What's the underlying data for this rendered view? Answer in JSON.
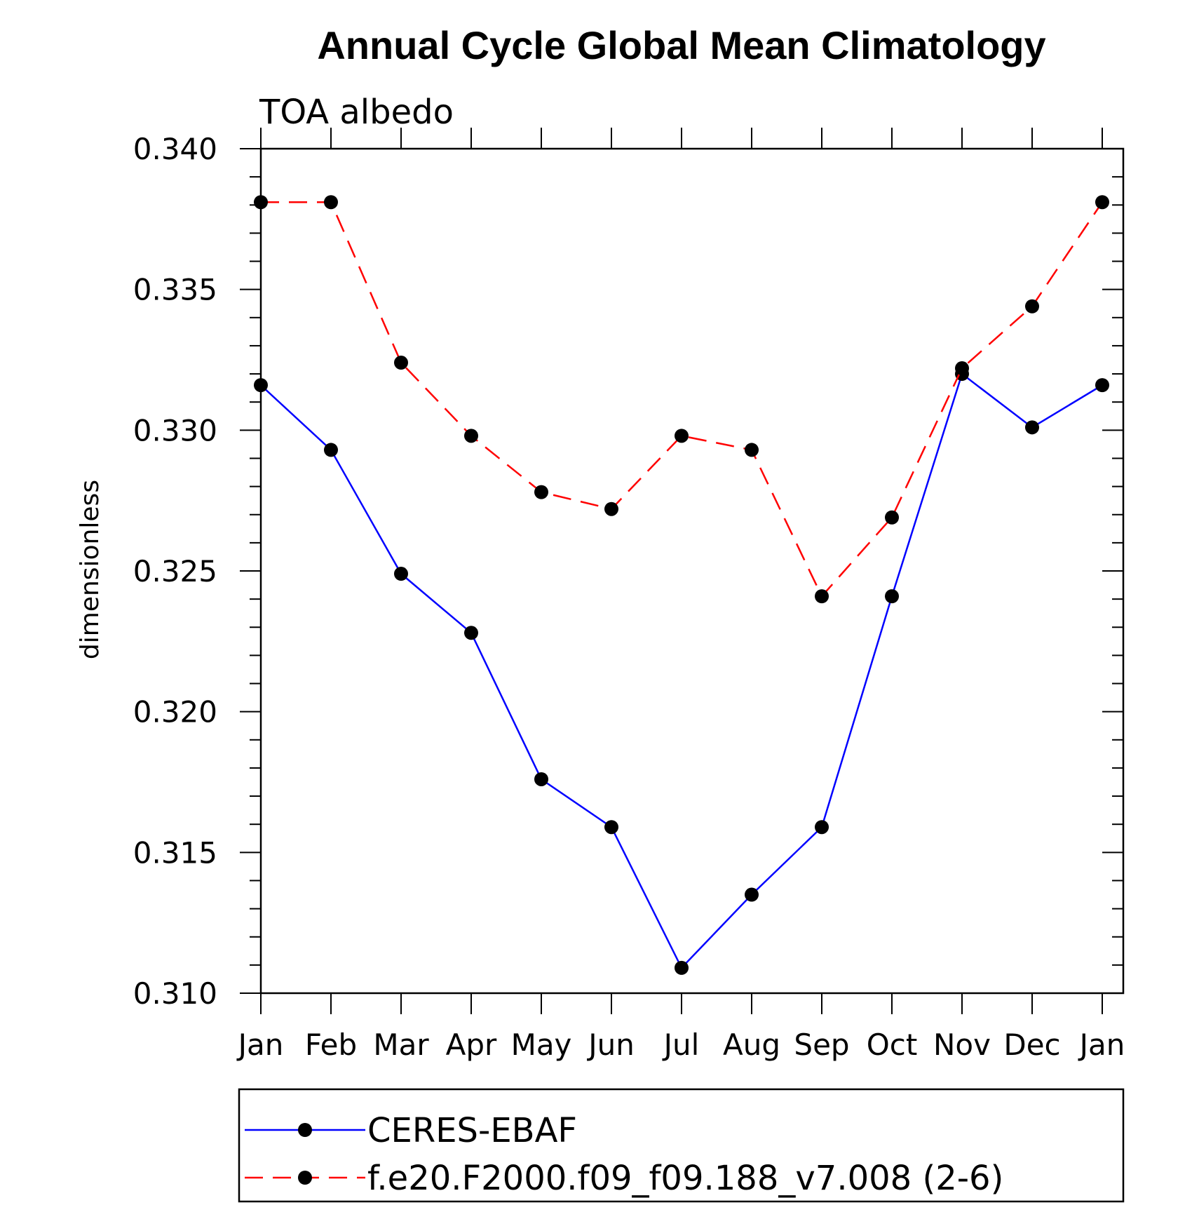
{
  "chart_data": {
    "type": "line",
    "title": "Annual Cycle Global Mean Climatology",
    "subtitle": "TOA albedo",
    "ylabel": "dimensionless",
    "xlabel": "",
    "categories": [
      "Jan",
      "Feb",
      "Mar",
      "Apr",
      "May",
      "Jun",
      "Jul",
      "Aug",
      "Sep",
      "Oct",
      "Nov",
      "Dec",
      "Jan"
    ],
    "ylim": [
      0.31,
      0.34
    ],
    "yticks": [
      0.31,
      0.315,
      0.32,
      0.325,
      0.33,
      0.335,
      0.34
    ],
    "ytick_labels": [
      "0.310",
      "0.315",
      "0.320",
      "0.325",
      "0.330",
      "0.335",
      "0.340"
    ],
    "y_minor_step": 0.001,
    "grid": false,
    "legend_position": "bottom",
    "series": [
      {
        "name": "CERES-EBAF",
        "color": "#0000ff",
        "dash": "solid",
        "marker": "circle",
        "values": [
          0.3316,
          0.3293,
          0.3249,
          0.3228,
          0.3176,
          0.3159,
          0.3109,
          0.3135,
          0.3159,
          0.3241,
          0.332,
          0.3301,
          0.3316
        ]
      },
      {
        "name": "f.e20.F2000.f09_f09.188_v7.008 (2-6)",
        "color": "#ff0000",
        "dash": "dashed",
        "marker": "circle",
        "values": [
          0.3381,
          0.3381,
          0.3324,
          0.3298,
          0.3278,
          0.3272,
          0.3298,
          0.3293,
          0.3241,
          0.3269,
          0.3322,
          0.3344,
          0.3381
        ]
      }
    ]
  }
}
